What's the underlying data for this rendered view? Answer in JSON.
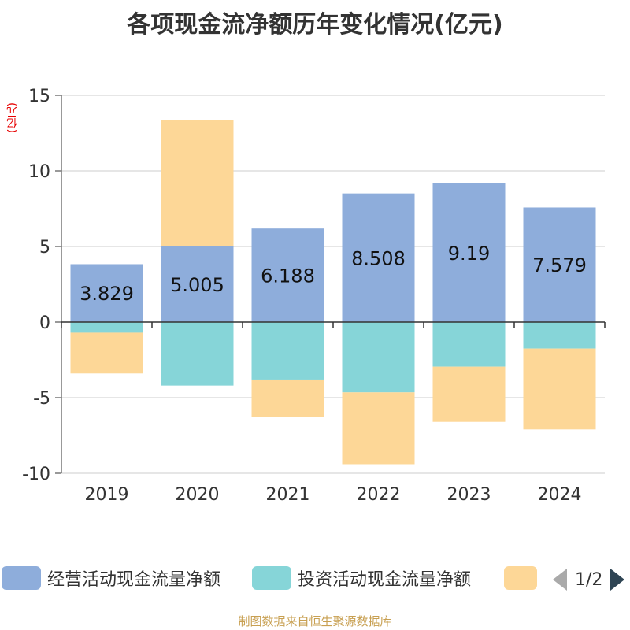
{
  "chart_data": {
    "type": "bar",
    "stacked": true,
    "title": "各项现金流净额历年变化情况(亿元)",
    "ylabel": "(亿元)",
    "categories": [
      "2019",
      "2020",
      "2021",
      "2022",
      "2023",
      "2024"
    ],
    "ylim": [
      -10,
      15
    ],
    "yticks": [
      15,
      10,
      5,
      0,
      -5,
      -10
    ],
    "series": [
      {
        "name": "经营活动现金流量净额",
        "color": "#8eaddb",
        "values": [
          3.829,
          5.005,
          6.188,
          8.508,
          9.19,
          7.579
        ],
        "labels": [
          "3.829",
          "5.005",
          "6.188",
          "8.508",
          "9.19",
          "7.579"
        ]
      },
      {
        "name": "投资活动现金流量净额",
        "color": "#86d5d8",
        "values": [
          -0.7,
          -4.2,
          -3.8,
          -4.65,
          -2.95,
          -1.75
        ]
      },
      {
        "name": "",
        "color": "#fdd797",
        "values": [
          -2.7,
          8.35,
          -2.5,
          -4.75,
          -3.65,
          -5.35
        ]
      }
    ]
  },
  "legend": {
    "items": [
      "经营活动现金流量净额",
      "投资活动现金流量净额",
      ""
    ],
    "page": "1/2"
  },
  "source": "制图数据来自恒生聚源数据库"
}
